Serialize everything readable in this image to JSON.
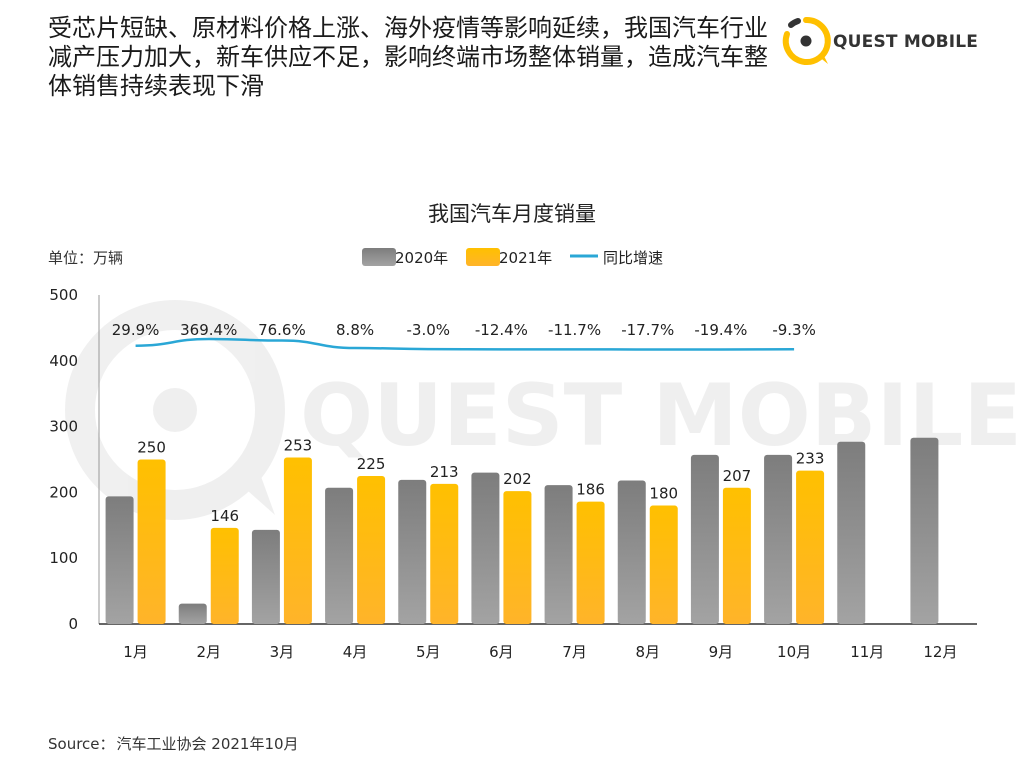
{
  "headline": "受芯片短缺、原材料价格上涨、海外疫情等影响延续，我国汽车行业减产压力加大，新车供应不足，影响终端市场整体销量，造成汽车整体销售持续表现下滑",
  "brand": {
    "name": "QUEST MOBILE",
    "watermark": "QUEST MOBILE",
    "accent": "#FFC000",
    "dark": "#333333"
  },
  "source": {
    "label": "Source：",
    "text": "汽车工业协会 2021年10月"
  },
  "chart_data": {
    "type": "bar",
    "title": "我国汽车月度销量",
    "unit_label": "单位：万辆",
    "categories": [
      "1月",
      "2月",
      "3月",
      "4月",
      "5月",
      "6月",
      "7月",
      "8月",
      "9月",
      "10月",
      "11月",
      "12月"
    ],
    "ylim": [
      0,
      500
    ],
    "yticks": [
      0,
      100,
      200,
      300,
      400,
      500
    ],
    "series": [
      {
        "name": "2020年",
        "color": "#8C8C8C",
        "values": [
          194,
          31,
          143,
          207,
          219,
          230,
          211,
          218,
          257,
          257,
          277,
          283
        ]
      },
      {
        "name": "2021年",
        "color": "#FFC000",
        "values": [
          250,
          146,
          253,
          225,
          213,
          202,
          186,
          180,
          207,
          233,
          null,
          null
        ],
        "data_labels": [
          "250",
          "146",
          "253",
          "225",
          "213",
          "202",
          "186",
          "180",
          "207",
          "233"
        ]
      }
    ],
    "growth_line": {
      "name": "同比增速",
      "color": "#2AA7D6",
      "values": [
        29.9,
        369.4,
        76.6,
        8.8,
        -3.0,
        -12.4,
        -11.7,
        -17.7,
        -19.4,
        -9.3
      ],
      "labels": [
        "29.9%",
        "369.4%",
        "76.6%",
        "8.8%",
        "-3.0%",
        "-12.4%",
        "-11.7%",
        "-17.7%",
        "-19.4%",
        "-9.3%"
      ]
    },
    "legend_position": "top-center",
    "grid": false
  }
}
